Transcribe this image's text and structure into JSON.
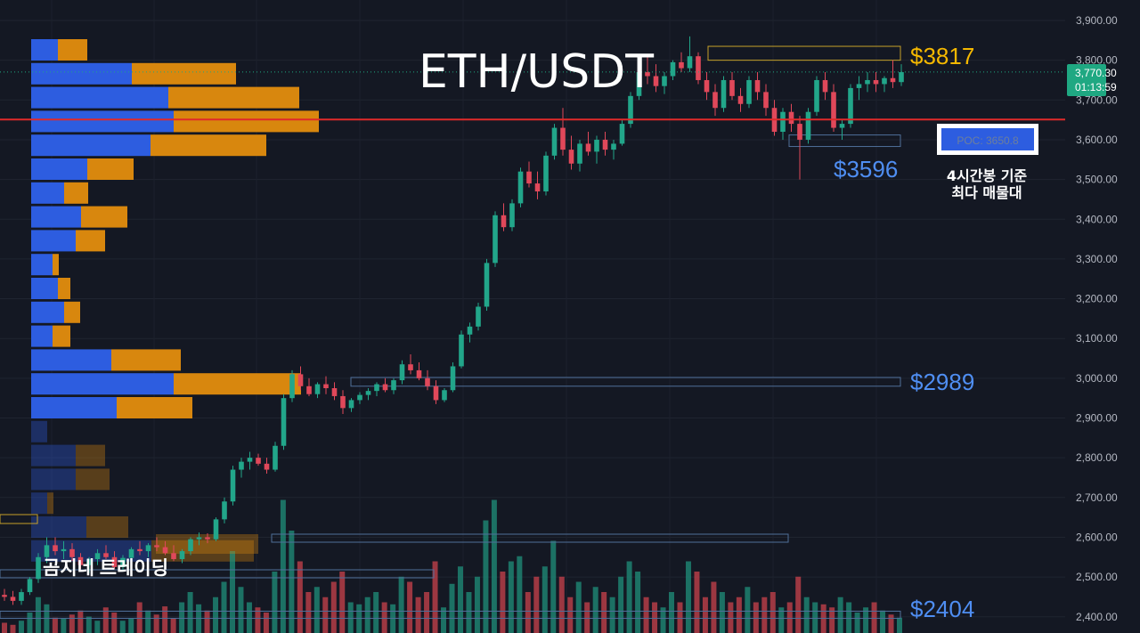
{
  "chart_data": {
    "type": "candlestick",
    "title": "ETH/USDT",
    "watermark": "곰지네 트레이딩",
    "y_axis": {
      "ylim": [
        2378,
        3922
      ],
      "ticks": [
        "3,900.00",
        "3,800.00",
        "3,700.00",
        "3,600.00",
        "3,500.00",
        "3,400.00",
        "3,300.00",
        "3,200.00",
        "3,100.00",
        "3,000.00",
        "2,900.00",
        "2,800.00",
        "2,700.00",
        "2,600.00",
        "2,500.00",
        "2,400.00"
      ],
      "tick_values": [
        3900,
        3800,
        3700,
        3600,
        3500,
        3400,
        3300,
        3200,
        3100,
        3000,
        2900,
        2800,
        2700,
        2600,
        2500,
        2400
      ]
    },
    "current_price": {
      "value": 3770.3,
      "label": "3,770.30",
      "countdown": "01:13:59",
      "color": "#1fa882"
    },
    "poc": {
      "value": 3650.8,
      "label": "POC: 3650.8",
      "note_line1": "4시간봉 기준",
      "note_line2": "최다 매물대",
      "color": "#e02a2a"
    },
    "levels": [
      {
        "label": "$3817",
        "value": 3817,
        "color": "#f5b800",
        "zone": [
          3800,
          3835
        ]
      },
      {
        "label": "$3596",
        "value": 3596,
        "color": "#4f8ef2",
        "zone": [
          3583,
          3612
        ]
      },
      {
        "label": "$2989",
        "value": 2989,
        "color": "#4f8ef2",
        "zone": [
          2980,
          3002
        ]
      },
      {
        "label": "$2404",
        "value": 2404,
        "color": "#4f8ef2",
        "zone": [
          2396,
          2414
        ]
      }
    ],
    "volume_profile": {
      "buy_color": "#2d5de0",
      "sell_color": "#d8870e",
      "rows": [
        {
          "price": 3878,
          "buy": 30,
          "sell": 33,
          "dim": false
        },
        {
          "price": 3818,
          "buy": 113,
          "sell": 117,
          "dim": false
        },
        {
          "price": 3758,
          "buy": 154,
          "sell": 147,
          "dim": false
        },
        {
          "price": 3698,
          "buy": 160,
          "sell": 163,
          "dim": false
        },
        {
          "price": 3638,
          "buy": 134,
          "sell": 130,
          "dim": false
        },
        {
          "price": 3578,
          "buy": 63,
          "sell": 52,
          "dim": false
        },
        {
          "price": 3518,
          "buy": 37,
          "sell": 27,
          "dim": false
        },
        {
          "price": 3458,
          "buy": 56,
          "sell": 52,
          "dim": false
        },
        {
          "price": 3398,
          "buy": 50,
          "sell": 33,
          "dim": false
        },
        {
          "price": 3338,
          "buy": 24,
          "sell": 7,
          "dim": false
        },
        {
          "price": 3278,
          "buy": 30,
          "sell": 14,
          "dim": false
        },
        {
          "price": 3218,
          "buy": 37,
          "sell": 18,
          "dim": false
        },
        {
          "price": 3158,
          "buy": 24,
          "sell": 20,
          "dim": false
        },
        {
          "price": 3098,
          "buy": 90,
          "sell": 78,
          "dim": false
        },
        {
          "price": 3038,
          "buy": 160,
          "sell": 143,
          "dim": false
        },
        {
          "price": 2978,
          "buy": 96,
          "sell": 85,
          "dim": false
        },
        {
          "price": 2918,
          "buy": 18,
          "sell": 0,
          "dim": true
        },
        {
          "price": 2858,
          "buy": 50,
          "sell": 33,
          "dim": true
        },
        {
          "price": 2798,
          "buy": 50,
          "sell": 38,
          "dim": true
        },
        {
          "price": 2738,
          "buy": 18,
          "sell": 7,
          "dim": true
        },
        {
          "price": 2678,
          "buy": 62,
          "sell": 47,
          "dim": true
        },
        {
          "price": 2618,
          "buy": 135,
          "sell": 115,
          "dim": true
        }
      ]
    },
    "candles": [
      [
        2455,
        2470,
        2440,
        2450
      ],
      [
        2450,
        2465,
        2430,
        2440
      ],
      [
        2440,
        2470,
        2430,
        2462
      ],
      [
        2462,
        2500,
        2455,
        2495
      ],
      [
        2495,
        2560,
        2485,
        2550
      ],
      [
        2550,
        2600,
        2535,
        2580
      ],
      [
        2580,
        2600,
        2555,
        2565
      ],
      [
        2565,
        2590,
        2545,
        2570
      ],
      [
        2570,
        2585,
        2540,
        2550
      ],
      [
        2550,
        2560,
        2520,
        2530
      ],
      [
        2530,
        2550,
        2510,
        2545
      ],
      [
        2545,
        2570,
        2530,
        2560
      ],
      [
        2560,
        2580,
        2545,
        2550
      ],
      [
        2550,
        2565,
        2520,
        2525
      ],
      [
        2525,
        2555,
        2515,
        2548
      ],
      [
        2548,
        2575,
        2540,
        2570
      ],
      [
        2570,
        2590,
        2555,
        2565
      ],
      [
        2565,
        2585,
        2550,
        2580
      ],
      [
        2580,
        2600,
        2565,
        2575
      ],
      [
        2575,
        2590,
        2555,
        2560
      ],
      [
        2560,
        2580,
        2540,
        2545
      ],
      [
        2545,
        2570,
        2535,
        2565
      ],
      [
        2565,
        2600,
        2555,
        2595
      ],
      [
        2595,
        2612,
        2580,
        2600
      ],
      [
        2600,
        2610,
        2585,
        2595
      ],
      [
        2595,
        2650,
        2590,
        2645
      ],
      [
        2645,
        2700,
        2635,
        2690
      ],
      [
        2690,
        2780,
        2680,
        2770
      ],
      [
        2770,
        2800,
        2750,
        2790
      ],
      [
        2790,
        2815,
        2770,
        2800
      ],
      [
        2800,
        2810,
        2780,
        2785
      ],
      [
        2785,
        2800,
        2760,
        2770
      ],
      [
        2770,
        2840,
        2765,
        2830
      ],
      [
        2830,
        2960,
        2820,
        2950
      ],
      [
        2950,
        3020,
        2940,
        3010
      ],
      [
        3010,
        3030,
        2970,
        2980
      ],
      [
        2980,
        3000,
        2955,
        2960
      ],
      [
        2960,
        2990,
        2950,
        2985
      ],
      [
        2985,
        3005,
        2960,
        2975
      ],
      [
        2975,
        2990,
        2945,
        2955
      ],
      [
        2955,
        2970,
        2910,
        2925
      ],
      [
        2925,
        2950,
        2915,
        2945
      ],
      [
        2945,
        2965,
        2935,
        2958
      ],
      [
        2958,
        2975,
        2945,
        2968
      ],
      [
        2968,
        2990,
        2955,
        2985
      ],
      [
        2985,
        3000,
        2965,
        2970
      ],
      [
        2970,
        3000,
        2960,
        2995
      ],
      [
        2995,
        3045,
        2985,
        3035
      ],
      [
        3035,
        3060,
        3010,
        3020
      ],
      [
        3020,
        3040,
        2995,
        3000
      ],
      [
        3000,
        3020,
        2970,
        2980
      ],
      [
        2980,
        2995,
        2935,
        2945
      ],
      [
        2945,
        2975,
        2940,
        2970
      ],
      [
        2970,
        3040,
        2965,
        3030
      ],
      [
        3030,
        3120,
        3025,
        3110
      ],
      [
        3110,
        3140,
        3090,
        3130
      ],
      [
        3130,
        3190,
        3120,
        3180
      ],
      [
        3180,
        3300,
        3170,
        3290
      ],
      [
        3290,
        3420,
        3280,
        3410
      ],
      [
        3410,
        3440,
        3370,
        3380
      ],
      [
        3380,
        3450,
        3370,
        3440
      ],
      [
        3440,
        3530,
        3430,
        3520
      ],
      [
        3520,
        3545,
        3480,
        3490
      ],
      [
        3490,
        3520,
        3450,
        3470
      ],
      [
        3470,
        3570,
        3460,
        3560
      ],
      [
        3560,
        3640,
        3550,
        3630
      ],
      [
        3630,
        3680,
        3560,
        3575
      ],
      [
        3575,
        3610,
        3525,
        3540
      ],
      [
        3540,
        3600,
        3520,
        3590
      ],
      [
        3590,
        3620,
        3560,
        3570
      ],
      [
        3570,
        3610,
        3540,
        3600
      ],
      [
        3600,
        3620,
        3560,
        3575
      ],
      [
        3575,
        3600,
        3550,
        3590
      ],
      [
        3590,
        3650,
        3585,
        3640
      ],
      [
        3640,
        3720,
        3630,
        3710
      ],
      [
        3710,
        3780,
        3700,
        3770
      ],
      [
        3770,
        3810,
        3740,
        3760
      ],
      [
        3760,
        3790,
        3720,
        3735
      ],
      [
        3735,
        3770,
        3715,
        3760
      ],
      [
        3760,
        3800,
        3750,
        3795
      ],
      [
        3795,
        3820,
        3770,
        3780
      ],
      [
        3780,
        3860,
        3770,
        3810
      ],
      [
        3810,
        3820,
        3740,
        3750
      ],
      [
        3750,
        3770,
        3700,
        3720
      ],
      [
        3720,
        3740,
        3660,
        3680
      ],
      [
        3680,
        3760,
        3670,
        3750
      ],
      [
        3750,
        3770,
        3700,
        3710
      ],
      [
        3710,
        3730,
        3670,
        3690
      ],
      [
        3690,
        3760,
        3680,
        3750
      ],
      [
        3750,
        3770,
        3700,
        3720
      ],
      [
        3720,
        3740,
        3660,
        3680
      ],
      [
        3680,
        3700,
        3610,
        3620
      ],
      [
        3620,
        3680,
        3600,
        3670
      ],
      [
        3670,
        3690,
        3620,
        3640
      ],
      [
        3640,
        3660,
        3500,
        3600
      ],
      [
        3600,
        3680,
        3590,
        3670
      ],
      [
        3670,
        3760,
        3660,
        3750
      ],
      [
        3750,
        3770,
        3700,
        3720
      ],
      [
        3720,
        3740,
        3620,
        3630
      ],
      [
        3630,
        3650,
        3600,
        3640
      ],
      [
        3640,
        3740,
        3630,
        3730
      ],
      [
        3730,
        3760,
        3700,
        3740
      ],
      [
        3740,
        3770,
        3720,
        3750
      ],
      [
        3750,
        3770,
        3720,
        3740
      ],
      [
        3740,
        3760,
        3720,
        3755
      ],
      [
        3755,
        3800,
        3730,
        3745
      ],
      [
        3745,
        3790,
        3735,
        3770
      ]
    ],
    "volume_bars": {
      "up_color": "#1f8f7b",
      "down_color": "#c9424c",
      "values": [
        10,
        8,
        12,
        20,
        35,
        28,
        15,
        14,
        18,
        22,
        16,
        12,
        25,
        20,
        12,
        14,
        30,
        22,
        18,
        26,
        14,
        30,
        40,
        28,
        22,
        35,
        50,
        80,
        45,
        30,
        25,
        20,
        60,
        130,
        100,
        70,
        40,
        45,
        35,
        50,
        60,
        30,
        28,
        35,
        40,
        30,
        28,
        55,
        50,
        35,
        40,
        70,
        25,
        48,
        65,
        40,
        55,
        110,
        130,
        60,
        70,
        75,
        40,
        55,
        65,
        90,
        55,
        35,
        50,
        30,
        45,
        40,
        35,
        55,
        70,
        60,
        35,
        30,
        25,
        40,
        30,
        70,
        60,
        35,
        50,
        40,
        30,
        35,
        45,
        30,
        35,
        40,
        25,
        30,
        55,
        35,
        30,
        28,
        25,
        35,
        30,
        20,
        25,
        30,
        22,
        18,
        15
      ]
    }
  }
}
